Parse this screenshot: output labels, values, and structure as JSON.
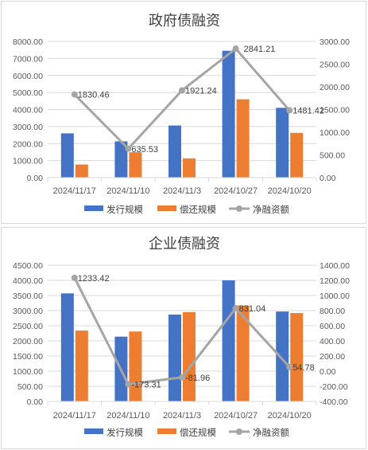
{
  "colors": {
    "issue": "#4472C4",
    "repay": "#ED7D31",
    "net": "#A5A5A5",
    "grid": "#D9D9D9",
    "text": "#595959"
  },
  "chart_data": [
    {
      "type": "bar",
      "title": "政府债融资",
      "categories": [
        "2024/11/17",
        "2024/11/10",
        "2024/11/3",
        "2024/10/27",
        "2024/10/20"
      ],
      "series": [
        {
          "name": "发行规模",
          "type": "bar",
          "axis": "left",
          "values": [
            2600,
            2130,
            3060,
            7450,
            4100
          ]
        },
        {
          "name": "偿还规模",
          "type": "bar",
          "axis": "left",
          "values": [
            770,
            1490,
            1130,
            4600,
            2630
          ]
        },
        {
          "name": "净融资额",
          "type": "line",
          "axis": "right",
          "values": [
            1830.46,
            635.53,
            1921.24,
            2841.21,
            1481.42
          ],
          "labels": [
            "1830.46",
            "635.53",
            "1921.24",
            "2841.21",
            "1481.42"
          ]
        }
      ],
      "left_ticks": [
        "0.00",
        "1000.00",
        "2000.00",
        "3000.00",
        "4000.00",
        "5000.00",
        "6000.00",
        "7000.00",
        "8000.00"
      ],
      "right_ticks": [
        "0.00",
        "500.00",
        "1000.00",
        "1500.00",
        "2000.00",
        "2500.00",
        "3000.00"
      ],
      "ylim_left": [
        0,
        8000
      ],
      "ylim_right": [
        0,
        3000
      ],
      "grid": true,
      "legend": "bottom"
    },
    {
      "type": "bar",
      "title": "企业债融资",
      "categories": [
        "2024/11/17",
        "2024/11/10",
        "2024/11/3",
        "2024/10/27",
        "2024/10/20"
      ],
      "series": [
        {
          "name": "发行规模",
          "type": "bar",
          "axis": "left",
          "values": [
            3570,
            2140,
            2870,
            4000,
            2970
          ]
        },
        {
          "name": "偿还规模",
          "type": "bar",
          "axis": "left",
          "values": [
            2340,
            2310,
            2950,
            3170,
            2920
          ]
        },
        {
          "name": "净融资额",
          "type": "line",
          "axis": "right",
          "values": [
            1233.42,
            -173.31,
            -81.96,
            831.04,
            54.78
          ],
          "labels": [
            "1233.42",
            "-173.31",
            "-81.96",
            "831.04",
            "54.78"
          ]
        }
      ],
      "left_ticks": [
        "0.00",
        "500.00",
        "1000.00",
        "1500.00",
        "2000.00",
        "2500.00",
        "3000.00",
        "3500.00",
        "4000.00",
        "4500.00"
      ],
      "right_ticks": [
        "-400.00",
        "-200.00",
        "0.00",
        "200.00",
        "400.00",
        "600.00",
        "800.00",
        "1000.00",
        "1200.00",
        "1400.00"
      ],
      "ylim_left": [
        0,
        4500
      ],
      "ylim_right": [
        -400,
        1400
      ],
      "grid": true,
      "legend": "bottom"
    }
  ]
}
